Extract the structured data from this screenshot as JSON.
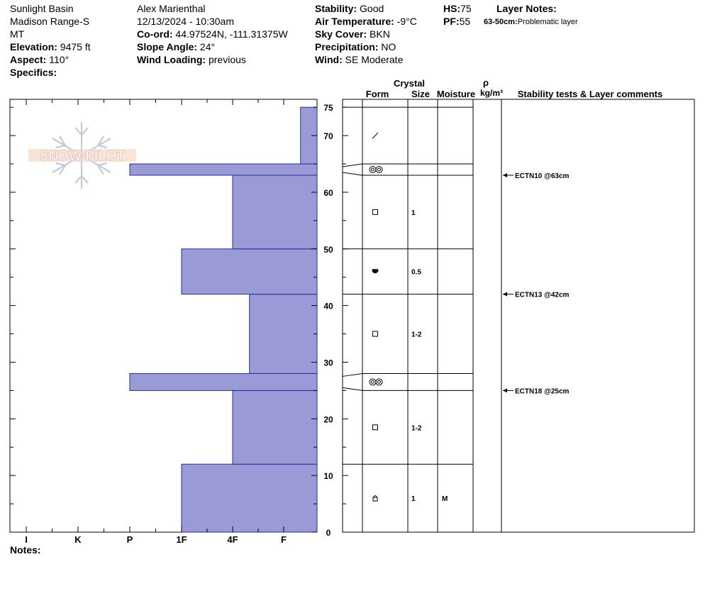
{
  "header": {
    "location": "Sunlight Basin",
    "range": "Madison Range-S",
    "state": "MT",
    "elevation_label": "Elevation:",
    "elevation_value": " 9475 ft",
    "aspect_label": "Aspect:",
    "aspect_value": " 110°",
    "specifics_label": "Specifics:",
    "observer": "Alex Marienthal",
    "datetime": "12/13/2024 - 10:30am",
    "coord_label": "Co-ord:",
    "coord_value": " 44.97524N, -111.31375W",
    "slope_label": "Slope Angle:",
    "slope_value": " 24°",
    "windload_label": "Wind Loading:",
    "windload_value": " previous",
    "stability_label": "Stability:",
    "stability_value": " Good",
    "airtemp_label": "Air Temperature:",
    "airtemp_value": " -9°C",
    "sky_label": "Sky Cover:",
    "sky_value": " BKN",
    "precip_label": "Precipitation:",
    "precip_value": " NO",
    "wind_label": "Wind:",
    "wind_value": "  SE Moderate",
    "hs_label": "HS:",
    "hs_value": "75",
    "pf_label": "PF:",
    "pf_value": "55",
    "layer_notes_label": "Layer Notes:",
    "layer_note_range": "63-50cm:",
    "layer_note_text": "Problematic layer"
  },
  "logo_text": "SNOW PILOT",
  "notes_label": "Notes:",
  "columns": {
    "crystal": "Crystal",
    "form": "Form",
    "size": "Size",
    "moisture": "Moisture",
    "rho": "ρ",
    "density": "kg/m³",
    "stability": "Stability tests & Layer comments"
  },
  "chart_data": {
    "type": "bar",
    "orientation": "horizontal",
    "title": "",
    "xlabel": "",
    "ylabel": "",
    "x_categories": [
      "I",
      "K",
      "P",
      "1F",
      "4F",
      "F"
    ],
    "ylim": [
      0,
      75
    ],
    "y_ticks": [
      0,
      10,
      20,
      30,
      40,
      50,
      60,
      70,
      75
    ],
    "fill_color": "#9a9ad6",
    "edge_color": "#2b2b9e",
    "layers": [
      {
        "bottom": 0,
        "top": 12,
        "hardness": "1F",
        "hardness_index": 3,
        "form": "FCxr",
        "size": "1",
        "moisture": "M"
      },
      {
        "bottom": 12,
        "top": 25,
        "hardness": "4F",
        "hardness_index": 4,
        "form": "FC",
        "size": "1-2",
        "moisture": ""
      },
      {
        "bottom": 25,
        "top": 28,
        "hardness": "P",
        "hardness_index": 2,
        "form": "MFcr",
        "size": "",
        "moisture": ""
      },
      {
        "bottom": 28,
        "top": 42,
        "hardness": "4F-",
        "hardness_index": 4.33,
        "form": "FC",
        "size": "1-2",
        "moisture": ""
      },
      {
        "bottom": 42,
        "top": 50,
        "hardness": "1F",
        "hardness_index": 3,
        "form": "SH",
        "size": "0.5",
        "moisture": ""
      },
      {
        "bottom": 50,
        "top": 63,
        "hardness": "4F",
        "hardness_index": 4,
        "form": "FC",
        "size": "1",
        "moisture": ""
      },
      {
        "bottom": 63,
        "top": 65,
        "hardness": "P",
        "hardness_index": 2,
        "form": "MFcr",
        "size": "",
        "moisture": ""
      },
      {
        "bottom": 65,
        "top": 75,
        "hardness": "F+",
        "hardness_index": 5.33,
        "form": "DF",
        "size": "",
        "moisture": ""
      }
    ],
    "stability_tests": [
      {
        "depth": 63,
        "label": "ECTN10 @63cm"
      },
      {
        "depth": 42,
        "label": "ECTN13 @42cm"
      },
      {
        "depth": 25,
        "label": "ECTN18 @25cm"
      }
    ]
  }
}
